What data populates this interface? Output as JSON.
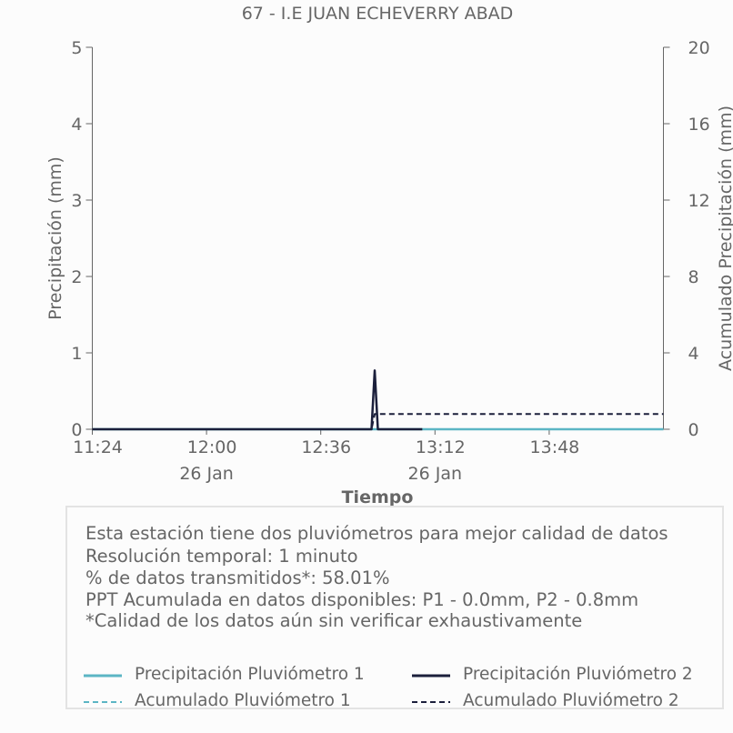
{
  "chart_data": {
    "type": "line",
    "title": "67 - I.E JUAN ECHEVERRY ABAD",
    "xlabel": "Tiempo",
    "ylabel": "Precipitación (mm)",
    "y2label": "Acumulado Precipitación (mm)",
    "x_tick_labels": [
      "11:24",
      "12:00",
      "12:36",
      "13:12",
      "13:48"
    ],
    "x_date_labels": [
      "26 Jan",
      "26 Jan"
    ],
    "y_ticks": [
      "0",
      "1",
      "2",
      "3",
      "4",
      "5"
    ],
    "y2_ticks": [
      "0",
      "4",
      "8",
      "12",
      "16",
      "20"
    ],
    "ylim": [
      0,
      5
    ],
    "y2lim": [
      0,
      20
    ],
    "x_range": [
      "11:24",
      "14:24"
    ],
    "series": [
      {
        "name": "Precipitación Pluviómetro 1",
        "axis": "left",
        "style": "solid",
        "color": "#5bb5c4",
        "points": [
          [
            "11:24",
            0
          ],
          [
            "14:24",
            0
          ]
        ]
      },
      {
        "name": "Precipitación Pluviómetro 2",
        "axis": "left",
        "style": "solid",
        "color": "#1b1f3b",
        "points": [
          [
            "11:24",
            0
          ],
          [
            "12:52",
            0
          ],
          [
            "12:53",
            0.77
          ],
          [
            "12:54",
            0
          ],
          [
            "13:08",
            0
          ]
        ]
      },
      {
        "name": "Acumulado Pluviómetro 1",
        "axis": "right",
        "style": "dashed",
        "color": "#5bb5c4",
        "points": [
          [
            "11:24",
            0
          ],
          [
            "14:24",
            0
          ]
        ]
      },
      {
        "name": "Acumulado Pluviómetro 2",
        "axis": "right",
        "style": "dashed",
        "color": "#1b1f3b",
        "points": [
          [
            "11:24",
            0
          ],
          [
            "12:52",
            0
          ],
          [
            "12:53",
            0.8
          ],
          [
            "14:24",
            0.8
          ]
        ]
      }
    ],
    "legend_position": "bottom"
  },
  "info": {
    "lines": [
      "Esta estación tiene dos pluviómetros para mejor calidad de datos",
      "Resolución temporal: 1 minuto",
      "% de datos transmitidos*: 58.01%",
      "PPT Acumulada en datos disponibles: P1 - 0.0mm, P2 - 0.8mm",
      "*Calidad de los datos aún sin verificar exhaustivamente"
    ]
  },
  "legend": {
    "items": [
      {
        "label": "Precipitación Pluviómetro 1",
        "color": "#5bb5c4",
        "style": "solid"
      },
      {
        "label": "Precipitación Pluviómetro 2",
        "color": "#1b1f3b",
        "style": "solid"
      },
      {
        "label": "Acumulado Pluviómetro 1",
        "color": "#5bb5c4",
        "style": "dashed"
      },
      {
        "label": "Acumulado Pluviómetro 2",
        "color": "#1b1f3b",
        "style": "dashed"
      }
    ]
  }
}
